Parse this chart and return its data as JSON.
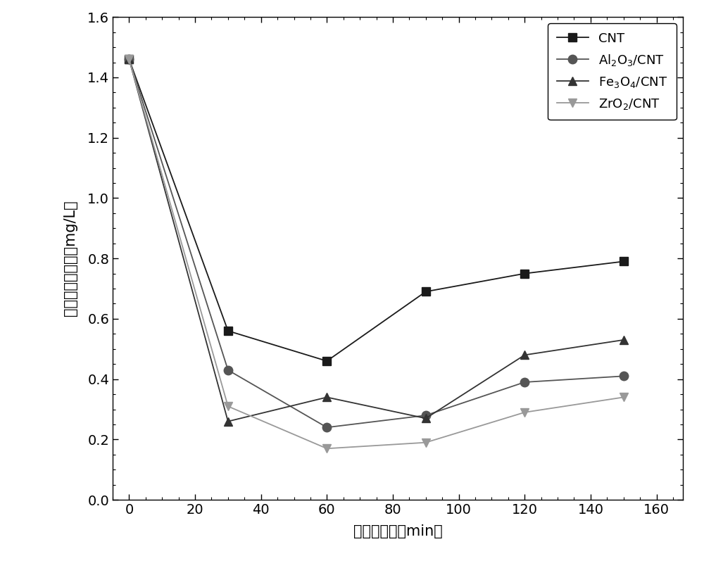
{
  "x": [
    0,
    30,
    60,
    90,
    120,
    150
  ],
  "CNT": [
    1.46,
    0.56,
    0.46,
    0.69,
    0.75,
    0.79
  ],
  "Al2O3_CNT": [
    1.46,
    0.43,
    0.24,
    0.28,
    0.39,
    0.41
  ],
  "Fe3O4_CNT": [
    1.46,
    0.26,
    0.34,
    0.27,
    0.48,
    0.53
  ],
  "ZrO2_CNT": [
    1.46,
    0.31,
    0.17,
    0.19,
    0.29,
    0.34
  ],
  "xlabel_cn": "电吸附时间",
  "xlabel_en": "min",
  "ylabel_cn": "氟化物出水浓度",
  "ylabel_unit": "mg/L",
  "xlim": [
    -5,
    168
  ],
  "ylim": [
    0.0,
    1.6
  ],
  "xticks": [
    0,
    20,
    40,
    60,
    80,
    100,
    120,
    140,
    160
  ],
  "yticks": [
    0.0,
    0.2,
    0.4,
    0.6,
    0.8,
    1.0,
    1.2,
    1.4,
    1.6
  ],
  "color_CNT": "#1a1a1a",
  "color_Al2O3": "#555555",
  "color_Fe3O4": "#333333",
  "color_ZrO2": "#999999",
  "linewidth": 1.3,
  "markersize": 9
}
